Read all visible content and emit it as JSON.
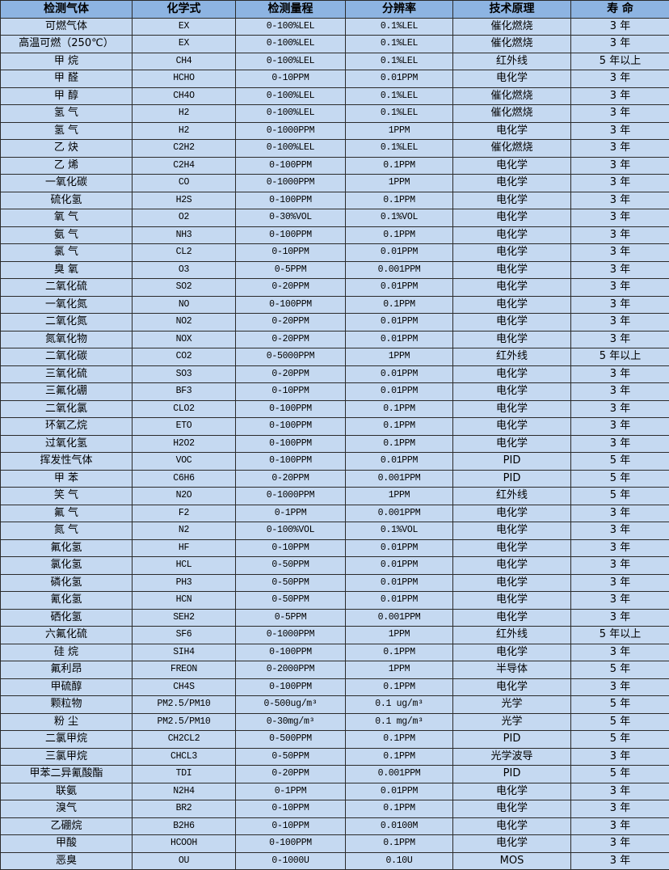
{
  "colors": {
    "header_bg": "#8db4e2",
    "row_bg": "#c5d9f1",
    "border": "#2b2b2b"
  },
  "table": {
    "headers": [
      "检测气体",
      "化学式",
      "检测量程",
      "分辨率",
      "技术原理",
      "寿 命"
    ],
    "rows": [
      [
        "可燃气体",
        "EX",
        "0-100%LEL",
        "0.1%LEL",
        "催化燃烧",
        "3 年"
      ],
      [
        "高温可燃（250℃）",
        "EX",
        "0-100%LEL",
        "0.1%LEL",
        "催化燃烧",
        "3 年"
      ],
      [
        "甲 烷",
        "CH4",
        "0-100%LEL",
        "0.1%LEL",
        "红外线",
        "5 年以上"
      ],
      [
        "甲 醛",
        "HCHO",
        "0-10PPM",
        "0.01PPM",
        "电化学",
        "3 年"
      ],
      [
        "甲 醇",
        "CH4O",
        "0-100%LEL",
        "0.1%LEL",
        "催化燃烧",
        "3 年"
      ],
      [
        "氢 气",
        "H2",
        "0-100%LEL",
        "0.1%LEL",
        "催化燃烧",
        "3 年"
      ],
      [
        "氢 气",
        "H2",
        "0-1000PPM",
        "1PPM",
        "电化学",
        "3 年"
      ],
      [
        "乙 炔",
        "C2H2",
        "0-100%LEL",
        "0.1%LEL",
        "催化燃烧",
        "3 年"
      ],
      [
        "乙 烯",
        "C2H4",
        "0-100PPM",
        "0.1PPM",
        "电化学",
        "3 年"
      ],
      [
        "一氧化碳",
        "CO",
        "0-1000PPM",
        "1PPM",
        "电化学",
        "3 年"
      ],
      [
        "硫化氢",
        "H2S",
        "0-100PPM",
        "0.1PPM",
        "电化学",
        "3 年"
      ],
      [
        "氧 气",
        "O2",
        "0-30%VOL",
        "0.1%VOL",
        "电化学",
        "3 年"
      ],
      [
        "氨 气",
        "NH3",
        "0-100PPM",
        "0.1PPM",
        "电化学",
        "3 年"
      ],
      [
        "氯 气",
        "CL2",
        "0-10PPM",
        "0.01PPM",
        "电化学",
        "3 年"
      ],
      [
        "臭 氧",
        "O3",
        "0-5PPM",
        "0.001PPM",
        "电化学",
        "3 年"
      ],
      [
        "二氧化硫",
        "SO2",
        "0-20PPM",
        "0.01PPM",
        "电化学",
        "3 年"
      ],
      [
        "一氧化氮",
        "NO",
        "0-100PPM",
        "0.1PPM",
        "电化学",
        "3 年"
      ],
      [
        "二氧化氮",
        "NO2",
        "0-20PPM",
        "0.01PPM",
        "电化学",
        "3 年"
      ],
      [
        "氮氧化物",
        "NOX",
        "0-20PPM",
        "0.01PPM",
        "电化学",
        "3 年"
      ],
      [
        "二氧化碳",
        "CO2",
        "0-5000PPM",
        "1PPM",
        "红外线",
        "5 年以上"
      ],
      [
        "三氧化硫",
        "SO3",
        "0-20PPM",
        "0.01PPM",
        "电化学",
        "3 年"
      ],
      [
        "三氟化硼",
        "BF3",
        "0-10PPM",
        "0.01PPM",
        "电化学",
        "3 年"
      ],
      [
        "二氧化氯",
        "CLO2",
        "0-100PPM",
        "0.1PPM",
        "电化学",
        "3 年"
      ],
      [
        "环氧乙烷",
        "ETO",
        "0-100PPM",
        "0.1PPM",
        "电化学",
        "3 年"
      ],
      [
        "过氧化氢",
        "H2O2",
        "0-100PPM",
        "0.1PPM",
        "电化学",
        "3 年"
      ],
      [
        "挥发性气体",
        "VOC",
        "0-100PPM",
        "0.01PPM",
        "PID",
        "5 年"
      ],
      [
        "甲 苯",
        "C6H6",
        "0-20PPM",
        "0.001PPM",
        "PID",
        "5 年"
      ],
      [
        "笑 气",
        "N2O",
        "0-1000PPM",
        "1PPM",
        "红外线",
        "5 年"
      ],
      [
        "氟 气",
        "F2",
        "0-1PPM",
        "0.001PPM",
        "电化学",
        "3 年"
      ],
      [
        "氮 气",
        "N2",
        "0-100%VOL",
        "0.1%VOL",
        "电化学",
        "3 年"
      ],
      [
        "氟化氢",
        "HF",
        "0-10PPM",
        "0.01PPM",
        "电化学",
        "3 年"
      ],
      [
        "氯化氢",
        "HCL",
        "0-50PPM",
        "0.01PPM",
        "电化学",
        "3 年"
      ],
      [
        "磷化氢",
        "PH3",
        "0-50PPM",
        "0.01PPM",
        "电化学",
        "3 年"
      ],
      [
        "氰化氢",
        "HCN",
        "0-50PPM",
        "0.01PPM",
        "电化学",
        "3 年"
      ],
      [
        "硒化氢",
        "SEH2",
        "0-5PPM",
        "0.001PPM",
        "电化学",
        "3 年"
      ],
      [
        "六氟化硫",
        "SF6",
        "0-1000PPM",
        "1PPM",
        "红外线",
        "5 年以上"
      ],
      [
        "硅 烷",
        "SIH4",
        "0-100PPM",
        "0.1PPM",
        "电化学",
        "3 年"
      ],
      [
        "氟利昂",
        "FREON",
        "0-2000PPM",
        "1PPM",
        "半导体",
        "5 年"
      ],
      [
        "甲硫醇",
        "CH4S",
        "0-100PPM",
        "0.1PPM",
        "电化学",
        "3 年"
      ],
      [
        "颗粒物",
        "PM2.5/PM10",
        "0-500ug/m³",
        "0.1 ug/m³",
        "光学",
        "5 年"
      ],
      [
        "粉 尘",
        "PM2.5/PM10",
        "0-30mg/m³",
        "0.1 mg/m³",
        "光学",
        "5 年"
      ],
      [
        "二氯甲烷",
        "CH2CL2",
        "0-500PPM",
        "0.1PPM",
        "PID",
        "5 年"
      ],
      [
        "三氯甲烷",
        "CHCL3",
        "0-50PPM",
        "0.1PPM",
        "光学波导",
        "3 年"
      ],
      [
        "甲苯二异氰酸酯",
        "TDI",
        "0-20PPM",
        "0.001PPM",
        "PID",
        "5 年"
      ],
      [
        "联氨",
        "N2H4",
        "0-1PPM",
        "0.01PPM",
        "电化学",
        "3 年"
      ],
      [
        "溴气",
        "BR2",
        "0-10PPM",
        "0.1PPM",
        "电化学",
        "3 年"
      ],
      [
        "乙硼烷",
        "B2H6",
        "0-10PPM",
        "0.0100M",
        "电化学",
        "3 年"
      ],
      [
        "甲酸",
        "HCOOH",
        "0-100PPM",
        "0.1PPM",
        "电化学",
        "3 年"
      ],
      [
        "恶臭",
        "OU",
        "0-1000U",
        "0.10U",
        "MOS",
        "3 年"
      ]
    ]
  }
}
